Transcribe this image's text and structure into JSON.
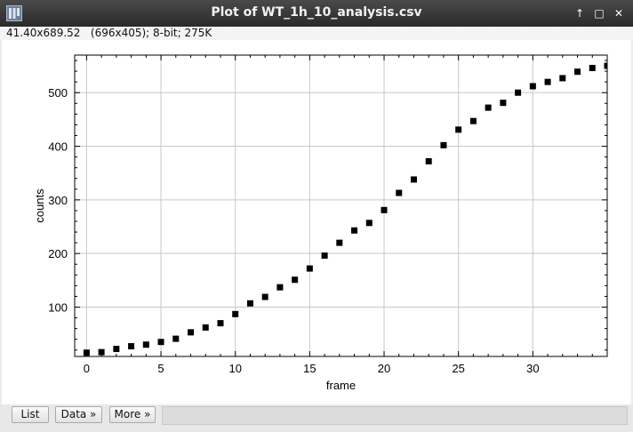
{
  "window": {
    "title": "Plot of WT_1h_10_analysis.csv",
    "icon": "imagej-icon",
    "controls": [
      "↑",
      "□",
      "✕"
    ]
  },
  "status": {
    "text": "41.40x689.52   (696x405); 8-bit; 275K"
  },
  "buttons": {
    "list": "List",
    "data": "Data »",
    "more": "More »"
  },
  "chart_data": {
    "type": "scatter",
    "xlabel": "frame",
    "ylabel": "counts",
    "xlim": [
      -0.8,
      35
    ],
    "ylim": [
      8,
      570
    ],
    "xticks": [
      0,
      5,
      10,
      15,
      20,
      25,
      30
    ],
    "yticks": [
      100,
      200,
      300,
      400,
      500
    ],
    "grid": true,
    "marker": "square",
    "marker_color": "#000000",
    "x": [
      0,
      1,
      2,
      3,
      4,
      5,
      6,
      7,
      8,
      9,
      10,
      11,
      12,
      13,
      14,
      15,
      16,
      17,
      18,
      19,
      20,
      21,
      22,
      23,
      24,
      25,
      26,
      27,
      28,
      29,
      30,
      31,
      32,
      33,
      34,
      35
    ],
    "y": [
      15,
      16,
      22,
      27,
      30,
      35,
      41,
      53,
      62,
      70,
      87,
      107,
      119,
      137,
      151,
      172,
      196,
      220,
      243,
      257,
      281,
      313,
      338,
      372,
      402,
      431,
      447,
      472,
      481,
      500,
      512,
      520,
      527,
      539,
      546,
      550
    ]
  }
}
